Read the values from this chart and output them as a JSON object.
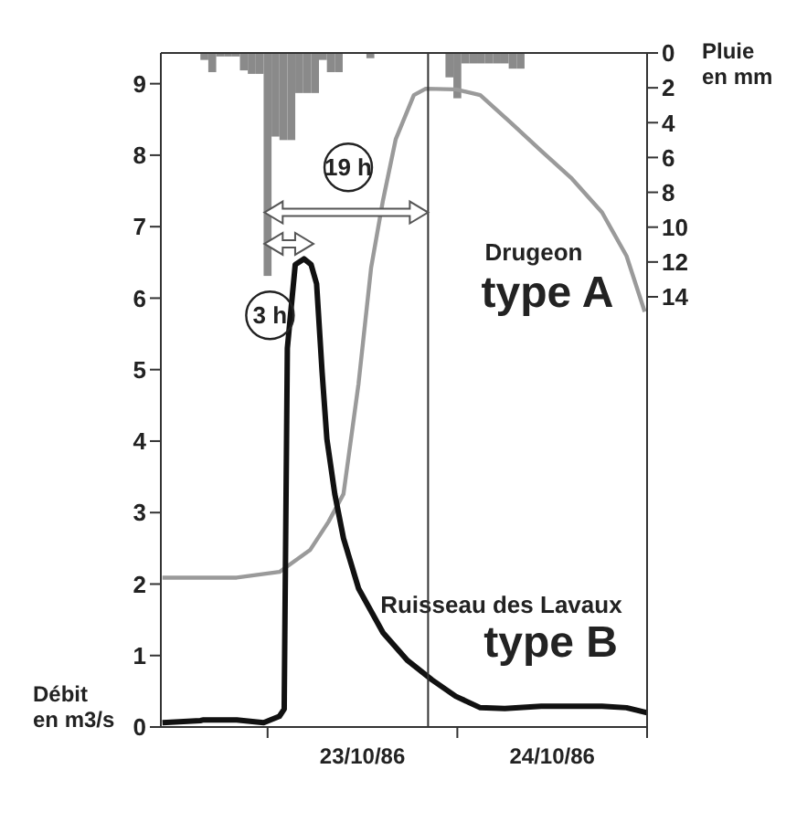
{
  "chart_data": {
    "type": "line",
    "ylabel": "Débit en m3/s",
    "y2label": "Pluie en mm",
    "xlim": [
      "1986-10-22T10:30",
      "1986-10-25T00:00"
    ],
    "xticks": [
      {
        "value": "1986-10-23T00:00",
        "label": null
      },
      {
        "value": "1986-10-23T12:00",
        "label": "23/10/86"
      },
      {
        "value": "1986-10-24T00:00",
        "label": null
      },
      {
        "value": "1986-10-24T12:00",
        "label": "24/10/86"
      },
      {
        "value": "1986-10-25T00:00",
        "label": null
      }
    ],
    "ylim": [
      0,
      9.43
    ],
    "yticks": [
      0,
      1,
      2,
      3,
      4,
      5,
      6,
      7,
      8,
      9
    ],
    "y2lim": [
      38.7,
      0
    ],
    "y2ticks": [
      0,
      2,
      4,
      6,
      8,
      10,
      12,
      14
    ],
    "series": [
      {
        "type": "bar",
        "axis": "y2",
        "color": "#8a8a8a",
        "x": [
          "1986-10-22T16:00",
          "1986-10-22T17:00",
          "1986-10-22T18:00",
          "1986-10-22T19:00",
          "1986-10-22T20:00",
          "1986-10-22T21:00",
          "1986-10-22T22:00",
          "1986-10-22T23:00",
          "1986-10-23T00:00",
          "1986-10-23T01:00",
          "1986-10-23T02:00",
          "1986-10-23T03:00",
          "1986-10-23T04:00",
          "1986-10-23T05:00",
          "1986-10-23T06:00",
          "1986-10-23T07:00",
          "1986-10-23T08:00",
          "1986-10-23T09:00",
          "1986-10-23T13:00",
          "1986-10-23T23:00",
          "1986-10-24T00:00",
          "1986-10-24T01:00",
          "1986-10-24T02:00",
          "1986-10-24T03:00",
          "1986-10-24T04:00",
          "1986-10-24T05:00",
          "1986-10-24T06:00",
          "1986-10-24T07:00",
          "1986-10-24T08:00"
        ],
        "values": [
          0.4,
          1.1,
          0.2,
          0.2,
          0.2,
          1.0,
          1.2,
          1.2,
          12.8,
          4.8,
          5.0,
          5.0,
          2.3,
          2.3,
          2.3,
          0.4,
          1.1,
          1.1,
          0.3,
          1.4,
          2.6,
          0.6,
          0.6,
          0.6,
          0.6,
          0.6,
          0.6,
          0.9,
          0.9
        ]
      },
      {
        "color": "#9a9a9a",
        "x": [
          "1986-10-22T10:42",
          "1986-10-22T20:06",
          "1986-10-23T01:30",
          "1986-10-23T05:24",
          "1986-10-23T07:42",
          "1986-10-23T09:36",
          "1986-10-23T11:30",
          "1986-10-23T13:06",
          "1986-10-23T14:36",
          "1986-10-23T16:12",
          "1986-10-23T18:30",
          "1986-10-23T20:00",
          "1986-10-23T23:48",
          "1986-10-24T02:54",
          "1986-10-24T06:48",
          "1986-10-24T10:36",
          "1986-10-24T14:30",
          "1986-10-24T18:18",
          "1986-10-24T21:24",
          "1986-10-24T23:42"
        ],
        "values": [
          2.09,
          2.09,
          2.17,
          2.48,
          2.87,
          3.26,
          4.8,
          6.43,
          7.37,
          8.22,
          8.84,
          8.93,
          8.92,
          8.84,
          8.45,
          8.06,
          7.67,
          7.2,
          6.59,
          5.81
        ]
      },
      {
        "color": "#111111",
        "x": [
          "1986-10-22T10:42",
          "1986-10-22T15:30",
          "1986-10-22T15:54",
          "1986-10-22T20:06",
          "1986-10-22T23:30",
          "1986-10-23T01:30",
          "1986-10-23T02:06",
          "1986-10-23T02:30",
          "1986-10-23T03:30",
          "1986-10-23T04:36",
          "1986-10-23T05:30",
          "1986-10-23T06:12",
          "1986-10-23T06:54",
          "1986-10-23T07:30",
          "1986-10-23T08:30",
          "1986-10-23T09:36",
          "1986-10-23T11:30",
          "1986-10-23T14:36",
          "1986-10-23T17:42",
          "1986-10-23T20:48",
          "1986-10-23T23:48",
          "1986-10-24T02:54",
          "1986-10-24T06:00",
          "1986-10-24T10:36",
          "1986-10-24T18:18",
          "1986-10-24T21:24",
          "1986-10-25T00:00"
        ],
        "values": [
          0.06,
          0.09,
          0.1,
          0.1,
          0.06,
          0.15,
          0.25,
          5.3,
          6.47,
          6.55,
          6.47,
          6.2,
          4.96,
          4.03,
          3.26,
          2.64,
          1.94,
          1.32,
          0.93,
          0.66,
          0.43,
          0.27,
          0.26,
          0.29,
          0.29,
          0.27,
          0.2
        ]
      }
    ],
    "ref_lines": [
      {
        "axis": "x",
        "value": "1986-10-23T20:18",
        "color": "#333333"
      }
    ],
    "annotations": [
      {
        "text": "19 h",
        "x": "1986-10-23T10:12",
        "y": 7.83
      },
      {
        "text": "3 h",
        "x": "1986-10-23T00:18",
        "y": 5.76
      },
      "Drugeon",
      "type A",
      "Ruisseau des Lavaux",
      "type B"
    ]
  }
}
